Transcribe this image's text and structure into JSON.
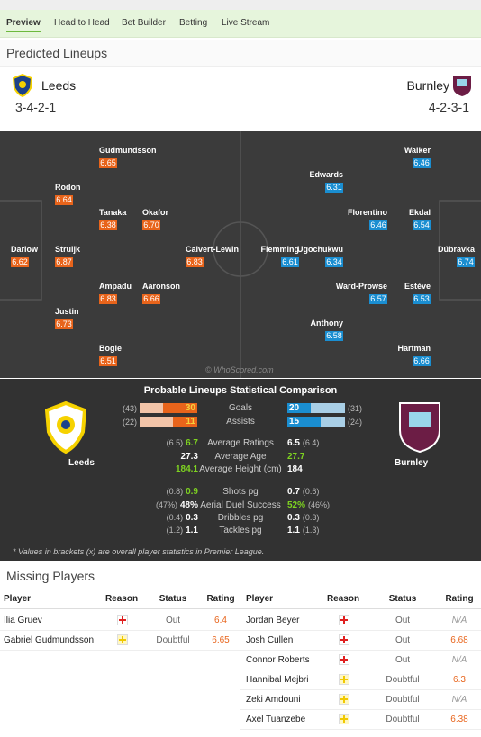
{
  "tabs": [
    "Preview",
    "Head to Head",
    "Bet Builder",
    "Betting",
    "Live Stream"
  ],
  "lineups": {
    "title": "Predicted Lineups",
    "watermark": "© WhoScored.com",
    "home": {
      "name": "Leeds",
      "formation": "3-4-2-1",
      "players": [
        {
          "name": "Gudmundsson",
          "rating": "6.65"
        },
        {
          "name": "Rodon",
          "rating": "6.64"
        },
        {
          "name": "Tanaka",
          "rating": "6.38"
        },
        {
          "name": "Okafor",
          "rating": "6.70"
        },
        {
          "name": "Darlow",
          "rating": "6.62"
        },
        {
          "name": "Struijk",
          "rating": "6.87"
        },
        {
          "name": "Calvert-Lewin",
          "rating": "6.83"
        },
        {
          "name": "Ampadu",
          "rating": "6.83"
        },
        {
          "name": "Aaronson",
          "rating": "6.66"
        },
        {
          "name": "Justin",
          "rating": "6.73"
        },
        {
          "name": "Bogle",
          "rating": "6.51"
        }
      ]
    },
    "away": {
      "name": "Burnley",
      "formation": "4-2-3-1",
      "players": [
        {
          "name": "Walker",
          "rating": "6.46"
        },
        {
          "name": "Edwards",
          "rating": "6.31"
        },
        {
          "name": "Florentino",
          "rating": "6.46"
        },
        {
          "name": "Ekdal",
          "rating": "6.54"
        },
        {
          "name": "Flemming",
          "rating": "6.61"
        },
        {
          "name": "Ugochukwu",
          "rating": "6.34"
        },
        {
          "name": "Dúbravka",
          "rating": "6.74"
        },
        {
          "name": "Ward-Prowse",
          "rating": "6.57"
        },
        {
          "name": "Estève",
          "rating": "6.53"
        },
        {
          "name": "Anthony",
          "rating": "6.58"
        },
        {
          "name": "Hartman",
          "rating": "6.66"
        }
      ]
    }
  },
  "comparison": {
    "title": "Probable Lineups Statistical Comparison",
    "home_name": "Leeds",
    "away_name": "Burnley",
    "bar_rows": [
      {
        "label": "Goals",
        "home": 30,
        "home_overall": "(43)",
        "away": 20,
        "away_overall": "(31)"
      },
      {
        "label": "Assists",
        "home": 11,
        "home_overall": "(22)",
        "away": 15,
        "away_overall": "(24)"
      }
    ],
    "rows": [
      {
        "label": "Average Ratings",
        "home": "6.7",
        "home_overall": "(6.5)",
        "away": "6.5",
        "away_overall": "(6.4)",
        "better": "home"
      },
      {
        "label": "Average Age",
        "home": "27.3",
        "away": "27.7",
        "better": "away"
      },
      {
        "label": "Average Height (cm)",
        "home": "184.1",
        "away": "184",
        "better": "home"
      },
      {
        "label": "Shots pg",
        "home": "0.9",
        "home_overall": "(0.8)",
        "away": "0.7",
        "away_overall": "(0.6)",
        "better": "home"
      },
      {
        "label": "Aerial Duel Success",
        "home": "48%",
        "home_overall": "(47%)",
        "away": "52%",
        "away_overall": "(46%)",
        "better": "away"
      },
      {
        "label": "Dribbles pg",
        "home": "0.3",
        "home_overall": "(0.4)",
        "away": "0.3",
        "away_overall": "(0.3)"
      },
      {
        "label": "Tackles pg",
        "home": "1.1",
        "home_overall": "(1.2)",
        "away": "1.1",
        "away_overall": "(1.3)"
      }
    ],
    "note": "* Values in brackets (x) are overall player statistics in Premier League."
  },
  "missing": {
    "title": "Missing Players",
    "columns": [
      "Player",
      "Reason",
      "Status",
      "Rating"
    ],
    "home": [
      {
        "player": "Ilia Gruev",
        "reason": "injury",
        "status": "Out",
        "rating": "6.4"
      },
      {
        "player": "Gabriel Gudmundsson",
        "reason": "doubtful",
        "status": "Doubtful",
        "rating": "6.65"
      }
    ],
    "away": [
      {
        "player": "Jordan Beyer",
        "reason": "injury",
        "status": "Out",
        "rating": "N/A"
      },
      {
        "player": "Josh Cullen",
        "reason": "injury",
        "status": "Out",
        "rating": "6.68"
      },
      {
        "player": "Connor Roberts",
        "reason": "injury",
        "status": "Out",
        "rating": "N/A"
      },
      {
        "player": "Hannibal Mejbri",
        "reason": "doubtful",
        "status": "Doubtful",
        "rating": "6.3"
      },
      {
        "player": "Zeki Amdouni",
        "reason": "doubtful",
        "status": "Doubtful",
        "rating": "N/A"
      },
      {
        "player": "Axel Tuanzebe",
        "reason": "doubtful",
        "status": "Doubtful",
        "rating": "6.38"
      }
    ]
  }
}
